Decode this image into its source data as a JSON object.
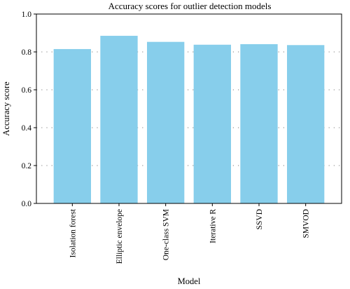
{
  "chart_data": {
    "type": "bar",
    "title": "Accuracy scores for outlier detection models",
    "xlabel": "Model",
    "ylabel": "Accuracy score",
    "categories": [
      "Isolation forest",
      "Elliptic envelope",
      "One-class SVM",
      "Iterative R",
      "SSVD",
      "SMVOD"
    ],
    "values": [
      0.815,
      0.885,
      0.853,
      0.838,
      0.841,
      0.836
    ],
    "ylim": [
      0,
      1.0
    ],
    "yticks": [
      "0.0",
      "0.2",
      "0.4",
      "0.6",
      "0.8",
      "1.0"
    ],
    "grid": "horizontal-dotted",
    "bar_color": "#87CEEB"
  }
}
